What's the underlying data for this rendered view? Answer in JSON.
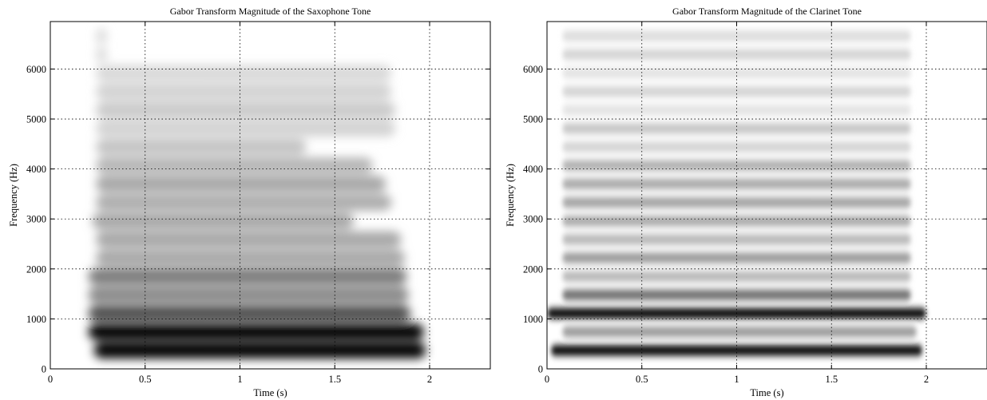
{
  "chart_data": [
    {
      "type": "heatmap",
      "title": "Gabor Transform Magnitude of the Saxophone Tone",
      "xlabel": "Time (s)",
      "ylabel": "Frequency (Hz)",
      "xlim": [
        0,
        2.32
      ],
      "ylim": [
        0,
        6950
      ],
      "grid": true,
      "colormap": "gray (white = 0, black = max)",
      "xticks": [
        0,
        0.5,
        1,
        1.5,
        2
      ],
      "xtick_labels": [
        "0",
        "0.5",
        "1",
        "1.5",
        "2"
      ],
      "yticks": [
        0,
        1000,
        2000,
        3000,
        4000,
        5000,
        6000
      ],
      "ytick_labels": [
        "0",
        "1000",
        "2000",
        "3000",
        "4000",
        "5000",
        "6000"
      ],
      "harmonics": [
        {
          "freq": 370,
          "start": 0.23,
          "end": 1.98,
          "level": 0.85
        },
        {
          "freq": 740,
          "start": 0.2,
          "end": 1.97,
          "level": 1.0
        },
        {
          "freq": 1110,
          "start": 0.2,
          "end": 1.9,
          "level": 0.6
        },
        {
          "freq": 1480,
          "start": 0.2,
          "end": 1.89,
          "level": 0.4
        },
        {
          "freq": 1850,
          "start": 0.2,
          "end": 1.88,
          "level": 0.45
        },
        {
          "freq": 2220,
          "start": 0.24,
          "end": 1.87,
          "level": 0.3
        },
        {
          "freq": 2590,
          "start": 0.24,
          "end": 1.85,
          "level": 0.3
        },
        {
          "freq": 2960,
          "start": 0.22,
          "end": 1.6,
          "level": 0.3
        },
        {
          "freq": 3330,
          "start": 0.24,
          "end": 1.8,
          "level": 0.28
        },
        {
          "freq": 3700,
          "start": 0.24,
          "end": 1.77,
          "level": 0.3
        },
        {
          "freq": 4070,
          "start": 0.24,
          "end": 1.7,
          "level": 0.25
        },
        {
          "freq": 4440,
          "start": 0.24,
          "end": 1.35,
          "level": 0.2
        },
        {
          "freq": 4810,
          "start": 0.24,
          "end": 1.82,
          "level": 0.15
        },
        {
          "freq": 5180,
          "start": 0.24,
          "end": 1.82,
          "level": 0.18
        },
        {
          "freq": 5550,
          "start": 0.24,
          "end": 1.8,
          "level": 0.15
        },
        {
          "freq": 5920,
          "start": 0.24,
          "end": 1.8,
          "level": 0.13
        },
        {
          "freq": 6290,
          "start": 0.24,
          "end": 0.3,
          "level": 0.12
        },
        {
          "freq": 6660,
          "start": 0.24,
          "end": 0.3,
          "level": 0.12
        }
      ]
    },
    {
      "type": "heatmap",
      "title": "Gabor Transform Magnitude of the Clarinet Tone",
      "xlabel": "Time (s)",
      "ylabel": "Frequency (Hz)",
      "xlim": [
        0,
        2.32
      ],
      "ylim": [
        0,
        6950
      ],
      "grid": true,
      "colormap": "gray (white = 0, black = max)",
      "xticks": [
        0,
        0.5,
        1,
        1.5,
        2
      ],
      "xtick_labels": [
        "0",
        "0.5",
        "1",
        "1.5",
        "2"
      ],
      "yticks": [
        0,
        1000,
        2000,
        3000,
        4000,
        5000,
        6000
      ],
      "ytick_labels": [
        "0",
        "1000",
        "2000",
        "3000",
        "4000",
        "5000",
        "6000"
      ],
      "harmonics": [
        {
          "freq": 370,
          "start": 0.02,
          "end": 1.98,
          "level": 1.0
        },
        {
          "freq": 740,
          "start": 0.08,
          "end": 1.95,
          "level": 0.35
        },
        {
          "freq": 1110,
          "start": 0.0,
          "end": 2.0,
          "level": 0.9
        },
        {
          "freq": 1480,
          "start": 0.08,
          "end": 1.92,
          "level": 0.5
        },
        {
          "freq": 1850,
          "start": 0.08,
          "end": 1.92,
          "level": 0.25
        },
        {
          "freq": 2220,
          "start": 0.08,
          "end": 1.92,
          "level": 0.35
        },
        {
          "freq": 2590,
          "start": 0.08,
          "end": 1.92,
          "level": 0.25
        },
        {
          "freq": 2960,
          "start": 0.08,
          "end": 1.92,
          "level": 0.3
        },
        {
          "freq": 3330,
          "start": 0.08,
          "end": 1.92,
          "level": 0.32
        },
        {
          "freq": 3700,
          "start": 0.08,
          "end": 1.92,
          "level": 0.3
        },
        {
          "freq": 4070,
          "start": 0.08,
          "end": 1.92,
          "level": 0.28
        },
        {
          "freq": 4440,
          "start": 0.08,
          "end": 1.92,
          "level": 0.15
        },
        {
          "freq": 4810,
          "start": 0.08,
          "end": 1.92,
          "level": 0.2
        },
        {
          "freq": 5180,
          "start": 0.08,
          "end": 1.92,
          "level": 0.1
        },
        {
          "freq": 5550,
          "start": 0.08,
          "end": 1.92,
          "level": 0.15
        },
        {
          "freq": 5920,
          "start": 0.08,
          "end": 1.92,
          "level": 0.1
        },
        {
          "freq": 6290,
          "start": 0.08,
          "end": 1.92,
          "level": 0.15
        },
        {
          "freq": 6660,
          "start": 0.08,
          "end": 1.92,
          "level": 0.12
        }
      ]
    }
  ]
}
